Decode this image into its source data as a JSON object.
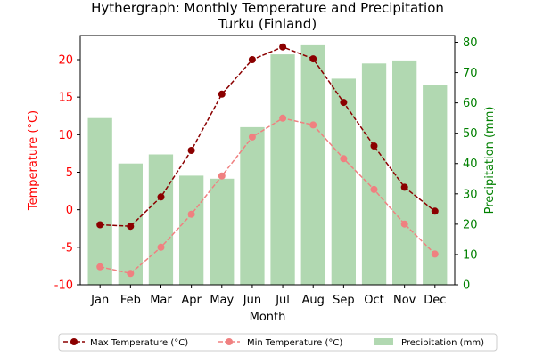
{
  "chart_data": {
    "type": "bar",
    "title": "Hythergraph: Monthly Temperature and Precipitation",
    "subtitle": "Turku (Finland)",
    "xlabel": "Month",
    "ylabel_left": "Temperature (°C)",
    "ylabel_right": "Precipitation (mm)",
    "categories": [
      "Jan",
      "Feb",
      "Mar",
      "Apr",
      "May",
      "Jun",
      "Jul",
      "Aug",
      "Sep",
      "Oct",
      "Nov",
      "Dec"
    ],
    "ylim_left": [
      -10,
      23.2
    ],
    "ylim_right": [
      0,
      82.2
    ],
    "yticks_left": [
      "-10",
      "-5",
      "0",
      "5",
      "10",
      "15",
      "20"
    ],
    "yticks_right": [
      "0",
      "10",
      "20",
      "30",
      "40",
      "50",
      "60",
      "70",
      "80"
    ],
    "series": [
      {
        "name": "Max Temperature (°C)",
        "kind": "line",
        "axis": "left",
        "color": "#8b0000",
        "values": [
          -2.0,
          -2.2,
          1.7,
          7.9,
          15.4,
          20.0,
          21.7,
          20.1,
          14.3,
          8.5,
          3.0,
          -0.2
        ]
      },
      {
        "name": "Min Temperature (°C)",
        "kind": "line",
        "axis": "left",
        "color": "#f08080",
        "values": [
          -7.6,
          -8.5,
          -5.0,
          -0.6,
          4.5,
          9.7,
          12.2,
          11.3,
          6.8,
          2.7,
          -1.9,
          -5.9
        ]
      },
      {
        "name": "Precipitation (mm)",
        "kind": "bar",
        "axis": "right",
        "color": "#b1d8b1",
        "values": [
          55,
          40,
          43,
          36,
          35,
          52,
          76,
          79,
          68,
          73,
          74,
          66
        ]
      }
    ],
    "left_axis_color": "#ff0000",
    "right_axis_color": "#008000",
    "legend_position": "bottom-center"
  }
}
